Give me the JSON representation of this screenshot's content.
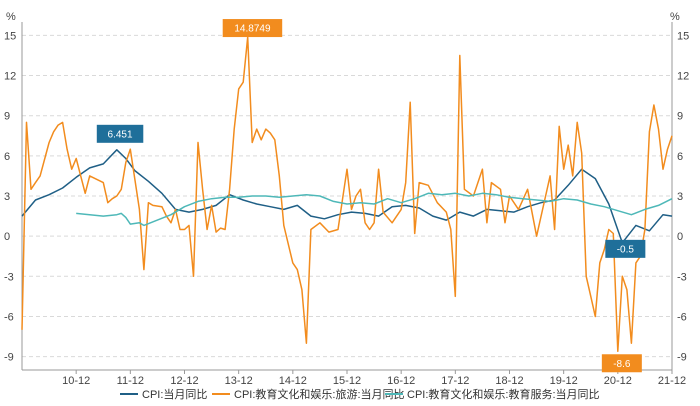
{
  "chart_data": {
    "type": "line",
    "y_unit_left": "%",
    "y_unit_right": "%",
    "ylim": [
      -10,
      16
    ],
    "y_ticks": [
      15,
      12,
      9,
      6,
      3,
      0,
      -3,
      -6,
      -9
    ],
    "x_tick_labels": [
      "10-12",
      "11-12",
      "12-12",
      "13-12",
      "14-12",
      "15-12",
      "16-12",
      "17-12",
      "18-12",
      "19-12",
      "20-12",
      "21-12"
    ],
    "x_tick_positions": [
      12,
      24,
      36,
      48,
      60,
      72,
      84,
      96,
      108,
      120,
      132,
      144
    ],
    "x_range": [
      0,
      144
    ],
    "grid": true,
    "legend_position": "bottom",
    "colors": {
      "cpi": "#1f5f86",
      "travel": "#f28c1e",
      "edu": "#4eb8b8",
      "callout_blue": "#1f6f9a",
      "callout_orange": "#f28c1e",
      "grid": "#d9d9d9",
      "axis": "#999999"
    },
    "series": [
      {
        "key": "cpi",
        "name": "CPI:当月同比",
        "x": [
          0,
          3,
          6,
          9,
          12,
          15,
          18,
          21,
          23,
          25,
          28,
          31,
          34,
          37,
          40,
          43,
          46,
          49,
          52,
          55,
          58,
          61,
          64,
          67,
          70,
          73,
          76,
          79,
          82,
          85,
          88,
          91,
          94,
          97,
          100,
          103,
          106,
          109,
          112,
          115,
          118,
          121,
          124,
          127,
          130,
          133,
          136,
          139,
          142,
          144
        ],
        "values": [
          1.5,
          2.7,
          3.1,
          3.6,
          4.4,
          5.1,
          5.4,
          6.451,
          5.8,
          4.9,
          4.1,
          3.2,
          2.0,
          1.8,
          2.0,
          2.3,
          3.1,
          2.7,
          2.4,
          2.2,
          2.0,
          2.3,
          1.5,
          1.3,
          1.6,
          1.8,
          1.7,
          1.5,
          2.2,
          2.3,
          2.1,
          1.5,
          1.2,
          1.8,
          1.5,
          2.0,
          1.9,
          1.8,
          2.2,
          2.5,
          2.7,
          3.8,
          5.0,
          4.3,
          2.4,
          -0.5,
          0.8,
          0.4,
          1.6,
          1.5
        ]
      },
      {
        "key": "travel",
        "name": "CPI:教育文化和娱乐:旅游:当月同比",
        "x": [
          0,
          1,
          2,
          3,
          4,
          6,
          7,
          8,
          9,
          10,
          11,
          12,
          14,
          15,
          18,
          19,
          20,
          21,
          22,
          23,
          24,
          26,
          27,
          28,
          29,
          31,
          32,
          33,
          34,
          35,
          36,
          37,
          38,
          39,
          40,
          41,
          42,
          43,
          44,
          45,
          46,
          47,
          48,
          49,
          50,
          51,
          52,
          53,
          54,
          55,
          56,
          57,
          58,
          60,
          61,
          62,
          63,
          64,
          66,
          68,
          70,
          72,
          73,
          74,
          75,
          76,
          77,
          78,
          79,
          80,
          82,
          84,
          85,
          86,
          87,
          88,
          90,
          92,
          94,
          95,
          96,
          97,
          98,
          100,
          102,
          103,
          104,
          106,
          107,
          108,
          110,
          112,
          114,
          116,
          117,
          118,
          119,
          120,
          121,
          122,
          123,
          124,
          125,
          126,
          127,
          128,
          129,
          130,
          131,
          132,
          133,
          134,
          135,
          136,
          137,
          138,
          139,
          140,
          141,
          142,
          143,
          144
        ],
        "values": [
          -7.0,
          8.5,
          3.5,
          4.0,
          4.5,
          7.0,
          7.8,
          8.3,
          8.5,
          6.5,
          5.0,
          5.8,
          3.2,
          4.5,
          4.0,
          2.5,
          2.8,
          3.0,
          3.5,
          5.5,
          6.5,
          2.0,
          -2.5,
          2.5,
          2.3,
          2.2,
          1.5,
          1.0,
          2.0,
          0.5,
          0.5,
          0.8,
          -3.0,
          7.0,
          3.5,
          0.5,
          2.3,
          0.3,
          0.6,
          0.5,
          3.5,
          8.0,
          11.0,
          11.5,
          14.8749,
          7.0,
          8.0,
          7.2,
          8.0,
          7.7,
          7.2,
          4.5,
          0.8,
          -2.0,
          -2.5,
          -4.0,
          -8.0,
          0.5,
          1.0,
          0.3,
          0.5,
          5.0,
          2.0,
          3.0,
          3.5,
          1.0,
          0.5,
          1.0,
          5.0,
          1.8,
          1.0,
          2.0,
          4.0,
          10.0,
          0.2,
          4.0,
          3.8,
          2.5,
          1.8,
          0.5,
          -4.5,
          13.5,
          3.5,
          3.0,
          5.0,
          1.0,
          4.0,
          3.5,
          1.0,
          3.0,
          2.0,
          3.5,
          0.0,
          3.0,
          4.5,
          0.5,
          8.2,
          5.0,
          6.8,
          4.5,
          8.5,
          6.2,
          -3.0,
          -4.5,
          -6.0,
          -2.0,
          -1.0,
          0.5,
          0.2,
          -8.6,
          -3.0,
          -4.0,
          -8.0,
          -2.0,
          -1.5,
          0.5,
          7.8,
          9.8,
          8.0,
          5.0,
          6.5,
          7.5
        ]
      },
      {
        "key": "edu",
        "name": "CPI:教育文化和娱乐:教育服务:当月同比",
        "x": [
          12,
          15,
          18,
          21,
          22,
          23,
          24,
          26,
          27,
          30,
          33,
          36,
          39,
          42,
          45,
          48,
          51,
          54,
          57,
          60,
          63,
          66,
          69,
          72,
          75,
          78,
          81,
          84,
          87,
          90,
          93,
          96,
          99,
          102,
          105,
          108,
          111,
          114,
          117,
          120,
          123,
          126,
          129,
          132,
          135,
          138,
          141,
          144
        ],
        "values": [
          1.7,
          1.6,
          1.5,
          1.6,
          1.7,
          1.4,
          0.9,
          1.0,
          0.8,
          1.2,
          1.6,
          2.2,
          2.6,
          2.8,
          2.9,
          2.9,
          3.0,
          3.0,
          2.9,
          3.0,
          3.1,
          3.0,
          2.6,
          2.4,
          2.5,
          2.4,
          2.8,
          2.5,
          2.8,
          3.2,
          3.1,
          3.2,
          3.0,
          3.2,
          3.1,
          2.9,
          2.8,
          2.7,
          2.6,
          2.8,
          2.7,
          2.4,
          2.2,
          1.9,
          1.6,
          2.0,
          2.3,
          2.8
        ]
      }
    ],
    "annotations": [
      {
        "label": "6.451",
        "series": "cpi",
        "x": 21,
        "y": 6.451,
        "color": "callout_blue"
      },
      {
        "label": "14.8749",
        "series": "travel",
        "x": 50,
        "y": 14.8749,
        "color": "callout_orange"
      },
      {
        "label": "-0.5",
        "series": "cpi",
        "x": 133,
        "y": -0.5,
        "color": "callout_blue"
      },
      {
        "label": "-8.6",
        "series": "travel",
        "x": 132,
        "y": -8.6,
        "color": "callout_orange"
      }
    ]
  }
}
